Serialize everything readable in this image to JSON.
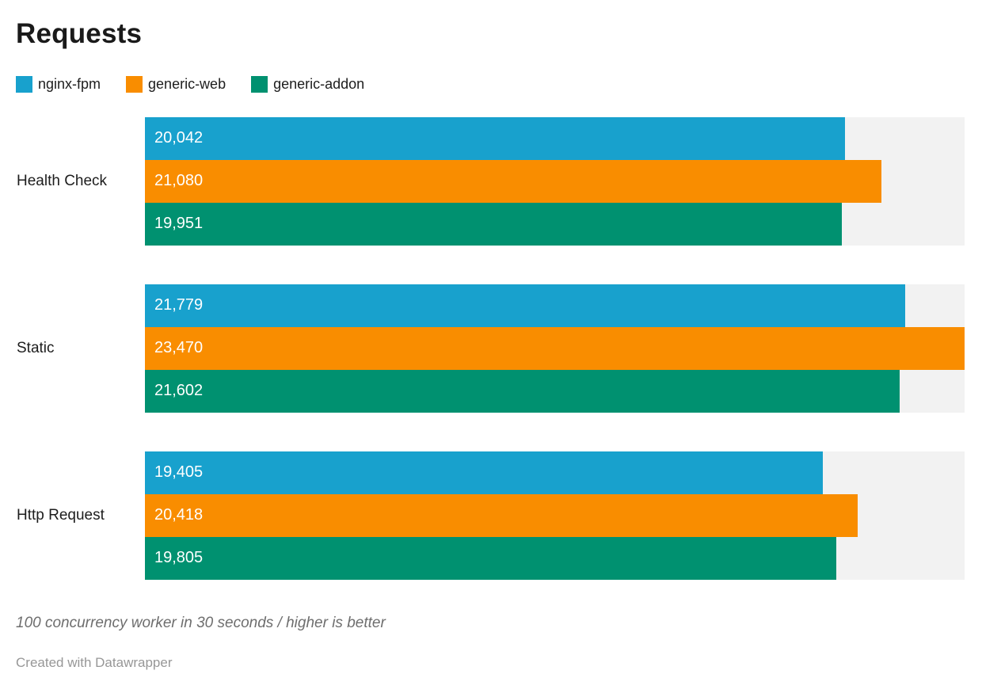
{
  "title": "Requests",
  "legend": [
    {
      "label": "nginx-fpm",
      "color": "#18A1CD",
      "icon": "legend-swatch-square"
    },
    {
      "label": "generic-web",
      "color": "#F98D00",
      "icon": "legend-swatch-square"
    },
    {
      "label": "generic-addon",
      "color": "#009170",
      "icon": "legend-swatch-square"
    }
  ],
  "chart_data": {
    "type": "bar",
    "orientation": "horizontal",
    "title": "Requests",
    "categories": [
      "Health Check",
      "Static",
      "Http Request"
    ],
    "series": [
      {
        "name": "nginx-fpm",
        "color": "#18A1CD",
        "values": [
          20042,
          21779,
          19405
        ],
        "labels": [
          "20,042",
          "21,779",
          "19,405"
        ]
      },
      {
        "name": "generic-web",
        "color": "#F98D00",
        "values": [
          21080,
          23470,
          20418
        ],
        "labels": [
          "21,080",
          "23,470",
          "20,418"
        ]
      },
      {
        "name": "generic-addon",
        "color": "#009170",
        "values": [
          19951,
          21602,
          19805
        ],
        "labels": [
          "19,951",
          "21,602",
          "19,805"
        ]
      }
    ],
    "xlim": [
      0,
      23470
    ],
    "grid": false,
    "track_color": "#F2F2F2",
    "value_labels_inside_bars": true,
    "legend_position": "top-left"
  },
  "footer": {
    "note": "100 concurrency worker in 30 seconds / higher is better",
    "attribution": "Created with Datawrapper"
  }
}
